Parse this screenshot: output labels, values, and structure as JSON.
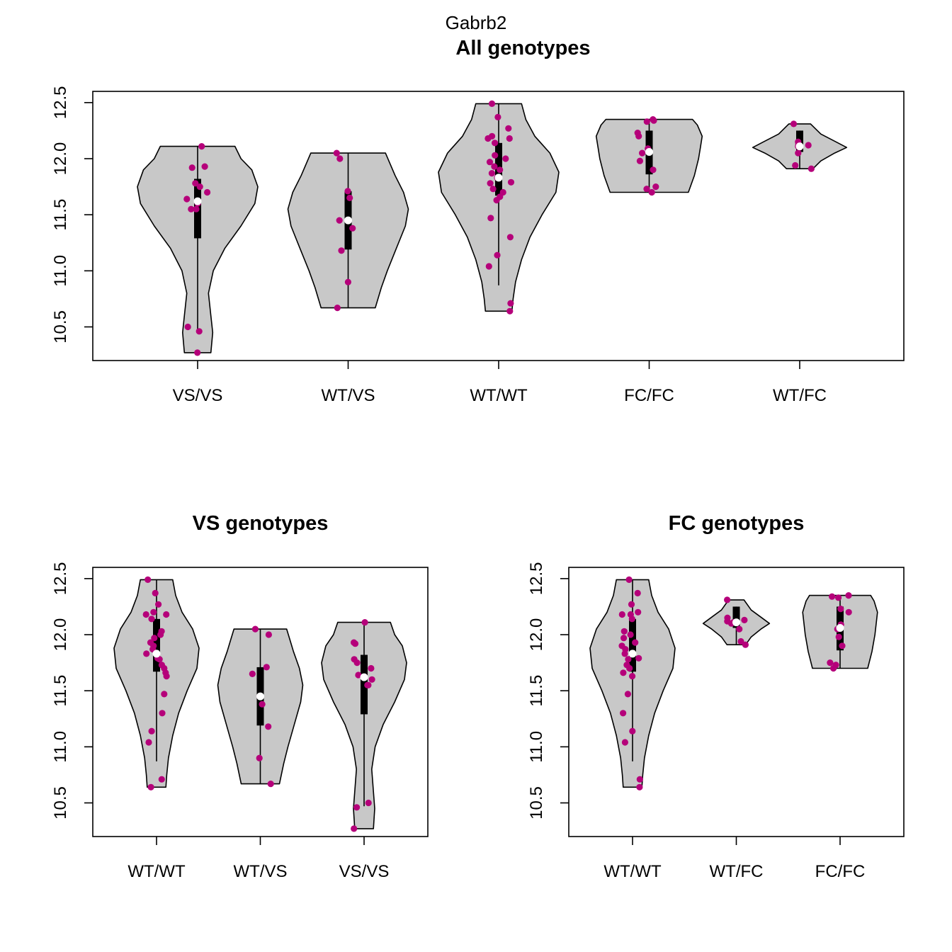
{
  "figure_title": "Gabrb2",
  "colors": {
    "violin_fill": "#c8c8c8",
    "point": "#b5007a",
    "median": "#ffffff",
    "box": "#000000"
  },
  "chart_data": [
    {
      "type": "violin",
      "title": "All genotypes",
      "xlabel": "",
      "ylabel": "",
      "ylim": [
        10.2,
        12.6
      ],
      "yticks": [
        "10.5",
        "11.0",
        "11.5",
        "12.0",
        "12.5"
      ],
      "ytick_values": [
        10.5,
        11.0,
        11.5,
        12.0,
        12.5
      ],
      "categories": [
        "VS/VS",
        "WT/VS",
        "WT/WT",
        "FC/FC",
        "WT/FC"
      ],
      "groups": [
        {
          "name": "VS/VS",
          "min": 10.27,
          "q1": 11.29,
          "median": 11.62,
          "q3": 11.82,
          "max": 12.11,
          "whisker_low": 10.47,
          "whisker_high": 12.11,
          "density": [
            [
              10.27,
              0.22
            ],
            [
              10.45,
              0.25
            ],
            [
              10.6,
              0.22
            ],
            [
              10.8,
              0.18
            ],
            [
              11.0,
              0.26
            ],
            [
              11.2,
              0.45
            ],
            [
              11.4,
              0.72
            ],
            [
              11.6,
              0.95
            ],
            [
              11.75,
              1.0
            ],
            [
              11.9,
              0.9
            ],
            [
              12.0,
              0.72
            ],
            [
              12.11,
              0.62
            ]
          ],
          "points": [
            10.27,
            10.46,
            10.5,
            11.55,
            11.55,
            11.6,
            11.64,
            11.7,
            11.75,
            11.78,
            11.92,
            11.93,
            12.11
          ]
        },
        {
          "name": "WT/VS",
          "min": 10.67,
          "q1": 11.19,
          "median": 11.45,
          "q3": 11.71,
          "max": 12.05,
          "whisker_low": 10.67,
          "whisker_high": 12.05,
          "density": [
            [
              10.67,
              0.45
            ],
            [
              10.85,
              0.55
            ],
            [
              11.0,
              0.65
            ],
            [
              11.2,
              0.8
            ],
            [
              11.4,
              0.95
            ],
            [
              11.55,
              1.0
            ],
            [
              11.7,
              0.92
            ],
            [
              11.85,
              0.78
            ],
            [
              11.95,
              0.7
            ],
            [
              12.05,
              0.62
            ]
          ],
          "points": [
            10.67,
            10.9,
            11.18,
            11.38,
            11.45,
            11.65,
            11.71,
            12.0,
            12.05
          ]
        },
        {
          "name": "WT/WT",
          "min": 10.64,
          "q1": 11.67,
          "median": 11.83,
          "q3": 12.14,
          "max": 12.49,
          "whisker_low": 10.87,
          "whisker_high": 12.49,
          "density": [
            [
              10.64,
              0.22
            ],
            [
              10.75,
              0.24
            ],
            [
              10.9,
              0.28
            ],
            [
              11.1,
              0.38
            ],
            [
              11.3,
              0.52
            ],
            [
              11.5,
              0.72
            ],
            [
              11.7,
              0.95
            ],
            [
              11.88,
              1.0
            ],
            [
              12.05,
              0.85
            ],
            [
              12.2,
              0.6
            ],
            [
              12.35,
              0.45
            ],
            [
              12.49,
              0.38
            ]
          ],
          "points": [
            10.64,
            10.71,
            11.04,
            11.14,
            11.3,
            11.47,
            11.63,
            11.66,
            11.7,
            11.73,
            11.78,
            11.79,
            11.83,
            11.87,
            11.9,
            11.93,
            11.97,
            12.0,
            12.03,
            12.14,
            12.18,
            12.18,
            12.2,
            12.27,
            12.37,
            12.49
          ]
        },
        {
          "name": "FC/FC",
          "min": 11.7,
          "q1": 11.86,
          "median": 12.06,
          "q3": 12.25,
          "max": 12.35,
          "whisker_low": 11.7,
          "whisker_high": 12.35,
          "density": [
            [
              11.7,
              0.65
            ],
            [
              11.85,
              0.75
            ],
            [
              12.0,
              0.82
            ],
            [
              12.1,
              0.85
            ],
            [
              12.2,
              0.88
            ],
            [
              12.3,
              0.8
            ],
            [
              12.35,
              0.72
            ]
          ],
          "points": [
            11.7,
            11.73,
            11.75,
            11.9,
            11.98,
            12.05,
            12.09,
            12.2,
            12.23,
            12.33,
            12.34,
            12.35
          ]
        },
        {
          "name": "WT/FC",
          "min": 11.91,
          "q1": 12.06,
          "median": 12.11,
          "q3": 12.25,
          "max": 12.31,
          "whisker_low": 11.91,
          "whisker_high": 12.25,
          "density": [
            [
              11.91,
              0.22
            ],
            [
              11.98,
              0.35
            ],
            [
              12.05,
              0.58
            ],
            [
              12.1,
              0.78
            ],
            [
              12.15,
              0.6
            ],
            [
              12.22,
              0.35
            ],
            [
              12.31,
              0.18
            ]
          ],
          "points": [
            11.91,
            11.94,
            12.05,
            12.1,
            12.11,
            12.12,
            12.13,
            12.15,
            12.31
          ]
        }
      ]
    },
    {
      "type": "violin",
      "title": "VS genotypes",
      "xlabel": "",
      "ylabel": "",
      "ylim": [
        10.2,
        12.6
      ],
      "yticks": [
        "10.5",
        "11.0",
        "11.5",
        "12.0",
        "12.5"
      ],
      "ytick_values": [
        10.5,
        11.0,
        11.5,
        12.0,
        12.5
      ],
      "categories": [
        "WT/WT",
        "WT/VS",
        "VS/VS"
      ],
      "groups": [
        {
          "name": "WT/WT",
          "min": 10.64,
          "q1": 11.67,
          "median": 11.83,
          "q3": 12.14,
          "max": 12.49,
          "whisker_low": 10.87,
          "whisker_high": 12.49,
          "density": [
            [
              10.64,
              0.22
            ],
            [
              10.75,
              0.24
            ],
            [
              10.9,
              0.28
            ],
            [
              11.1,
              0.38
            ],
            [
              11.3,
              0.52
            ],
            [
              11.5,
              0.72
            ],
            [
              11.7,
              0.95
            ],
            [
              11.88,
              1.0
            ],
            [
              12.05,
              0.85
            ],
            [
              12.2,
              0.6
            ],
            [
              12.35,
              0.45
            ],
            [
              12.49,
              0.38
            ]
          ],
          "points": [
            10.64,
            10.71,
            11.04,
            11.14,
            11.3,
            11.47,
            11.63,
            11.66,
            11.7,
            11.73,
            11.78,
            11.79,
            11.83,
            11.87,
            11.9,
            11.93,
            11.97,
            12.0,
            12.03,
            12.14,
            12.18,
            12.18,
            12.2,
            12.27,
            12.37,
            12.49
          ]
        },
        {
          "name": "WT/VS",
          "min": 10.67,
          "q1": 11.19,
          "median": 11.45,
          "q3": 11.71,
          "max": 12.05,
          "whisker_low": 10.67,
          "whisker_high": 12.05,
          "density": [
            [
              10.67,
              0.45
            ],
            [
              10.85,
              0.55
            ],
            [
              11.0,
              0.65
            ],
            [
              11.2,
              0.8
            ],
            [
              11.4,
              0.95
            ],
            [
              11.55,
              1.0
            ],
            [
              11.7,
              0.92
            ],
            [
              11.85,
              0.78
            ],
            [
              11.95,
              0.7
            ],
            [
              12.05,
              0.62
            ]
          ],
          "points": [
            10.67,
            10.9,
            11.18,
            11.38,
            11.45,
            11.65,
            11.71,
            12.0,
            12.05
          ]
        },
        {
          "name": "VS/VS",
          "min": 10.27,
          "q1": 11.29,
          "median": 11.62,
          "q3": 11.82,
          "max": 12.11,
          "whisker_low": 10.47,
          "whisker_high": 12.11,
          "density": [
            [
              10.27,
              0.22
            ],
            [
              10.45,
              0.25
            ],
            [
              10.6,
              0.22
            ],
            [
              10.8,
              0.18
            ],
            [
              11.0,
              0.26
            ],
            [
              11.2,
              0.45
            ],
            [
              11.4,
              0.72
            ],
            [
              11.6,
              0.95
            ],
            [
              11.75,
              1.0
            ],
            [
              11.9,
              0.9
            ],
            [
              12.0,
              0.72
            ],
            [
              12.11,
              0.62
            ]
          ],
          "points": [
            10.27,
            10.46,
            10.5,
            11.55,
            11.55,
            11.6,
            11.64,
            11.7,
            11.75,
            11.78,
            11.92,
            11.93,
            12.11
          ]
        }
      ]
    },
    {
      "type": "violin",
      "title": "FC genotypes",
      "xlabel": "",
      "ylabel": "",
      "ylim": [
        10.2,
        12.6
      ],
      "yticks": [
        "10.5",
        "11.0",
        "11.5",
        "12.0",
        "12.5"
      ],
      "ytick_values": [
        10.5,
        11.0,
        11.5,
        12.0,
        12.5
      ],
      "categories": [
        "WT/WT",
        "WT/FC",
        "FC/FC"
      ],
      "groups": [
        {
          "name": "WT/WT",
          "min": 10.64,
          "q1": 11.67,
          "median": 11.83,
          "q3": 12.14,
          "max": 12.49,
          "whisker_low": 10.87,
          "whisker_high": 12.49,
          "density": [
            [
              10.64,
              0.22
            ],
            [
              10.75,
              0.24
            ],
            [
              10.9,
              0.28
            ],
            [
              11.1,
              0.38
            ],
            [
              11.3,
              0.52
            ],
            [
              11.5,
              0.72
            ],
            [
              11.7,
              0.95
            ],
            [
              11.88,
              1.0
            ],
            [
              12.05,
              0.85
            ],
            [
              12.2,
              0.6
            ],
            [
              12.35,
              0.45
            ],
            [
              12.49,
              0.38
            ]
          ],
          "points": [
            10.64,
            10.71,
            11.04,
            11.14,
            11.3,
            11.47,
            11.63,
            11.66,
            11.7,
            11.73,
            11.78,
            11.79,
            11.83,
            11.87,
            11.9,
            11.93,
            11.97,
            12.0,
            12.03,
            12.14,
            12.18,
            12.18,
            12.2,
            12.27,
            12.37,
            12.49
          ]
        },
        {
          "name": "WT/FC",
          "min": 11.91,
          "q1": 12.06,
          "median": 12.11,
          "q3": 12.25,
          "max": 12.31,
          "whisker_low": 11.91,
          "whisker_high": 12.25,
          "density": [
            [
              11.91,
              0.22
            ],
            [
              11.98,
              0.35
            ],
            [
              12.05,
              0.58
            ],
            [
              12.1,
              0.78
            ],
            [
              12.15,
              0.6
            ],
            [
              12.22,
              0.35
            ],
            [
              12.31,
              0.18
            ]
          ],
          "points": [
            11.91,
            11.94,
            12.05,
            12.1,
            12.11,
            12.12,
            12.13,
            12.15,
            12.31
          ]
        },
        {
          "name": "FC/FC",
          "min": 11.7,
          "q1": 11.86,
          "median": 12.06,
          "q3": 12.25,
          "max": 12.35,
          "whisker_low": 11.7,
          "whisker_high": 12.35,
          "density": [
            [
              11.7,
              0.65
            ],
            [
              11.85,
              0.75
            ],
            [
              12.0,
              0.82
            ],
            [
              12.1,
              0.85
            ],
            [
              12.2,
              0.88
            ],
            [
              12.3,
              0.8
            ],
            [
              12.35,
              0.72
            ]
          ],
          "points": [
            11.7,
            11.73,
            11.75,
            11.9,
            11.98,
            12.05,
            12.09,
            12.2,
            12.23,
            12.33,
            12.34,
            12.35
          ]
        }
      ]
    }
  ]
}
